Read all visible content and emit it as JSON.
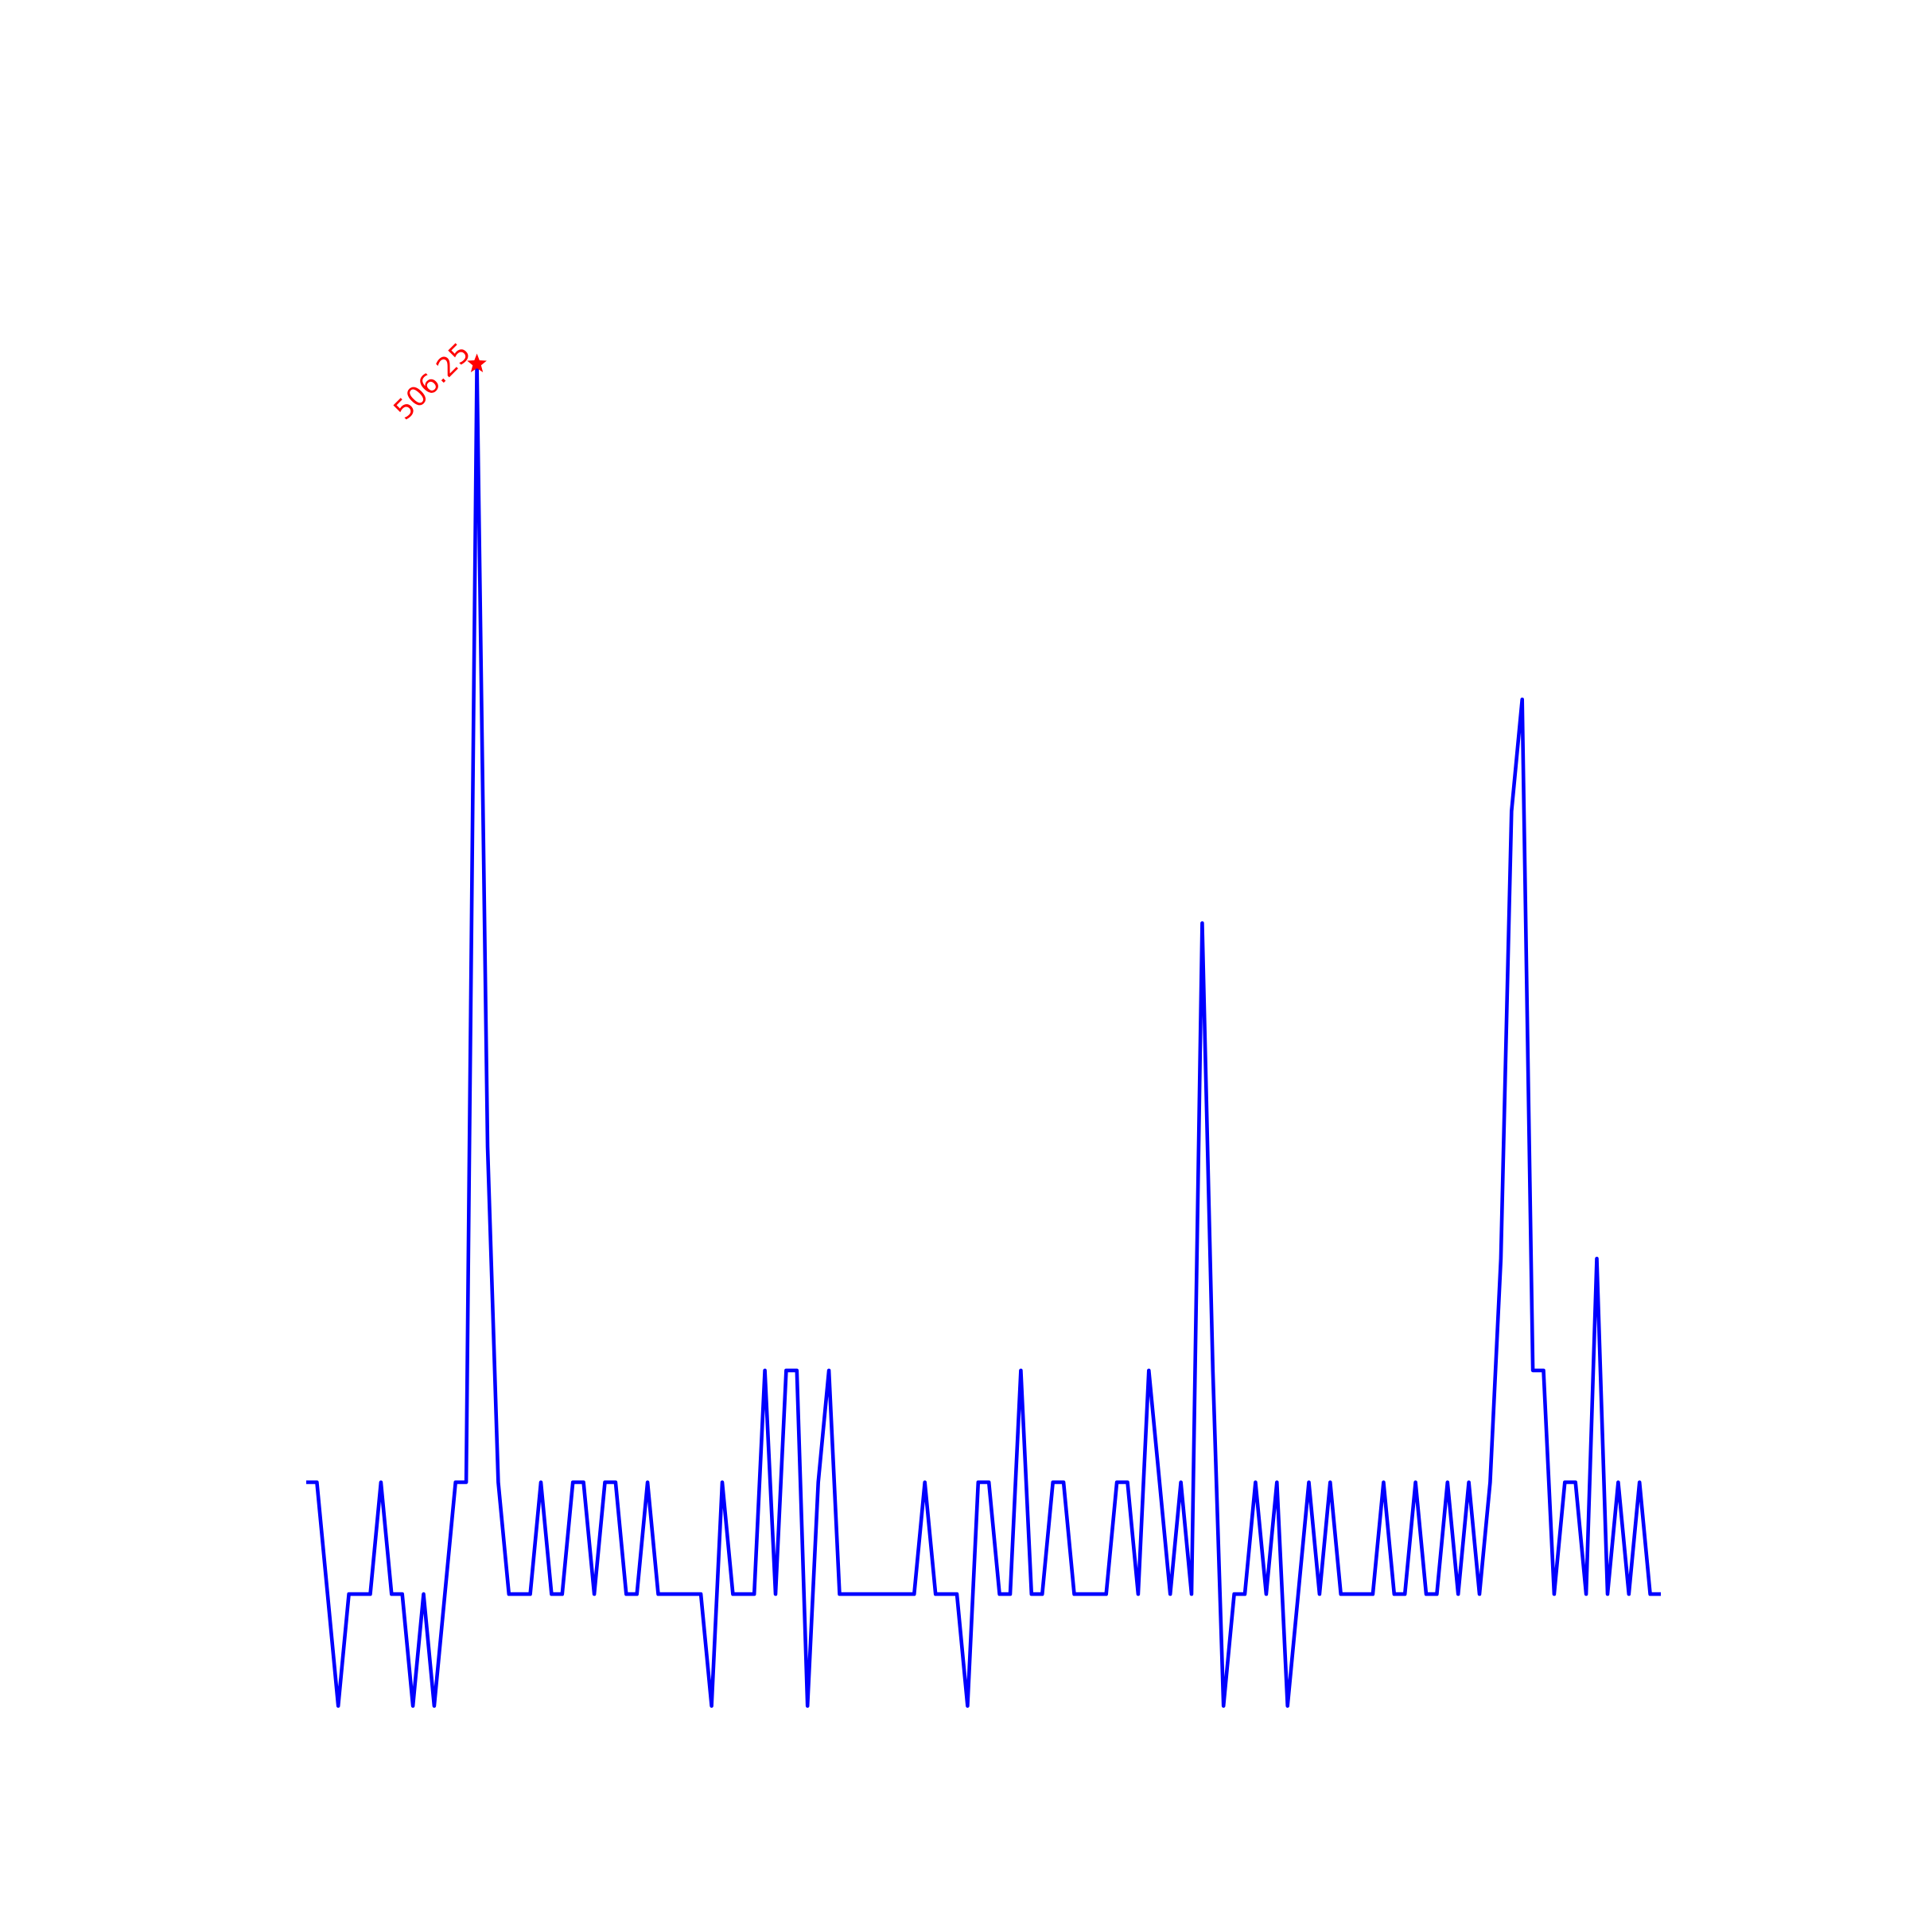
{
  "chart_data": {
    "type": "line",
    "values": [
      84.375,
      84.375,
      42.1875,
      0,
      42.1875,
      42.1875,
      42.1875,
      84.375,
      42.1875,
      42.1875,
      0,
      42.1875,
      0,
      42.1875,
      84.375,
      84.375,
      506.25,
      210.9375,
      84.375,
      42.1875,
      42.1875,
      42.1875,
      84.375,
      42.1875,
      42.1875,
      84.375,
      84.375,
      42.1875,
      84.375,
      84.375,
      42.1875,
      42.1875,
      84.375,
      42.1875,
      42.1875,
      42.1875,
      42.1875,
      42.1875,
      0,
      84.375,
      42.1875,
      42.1875,
      42.1875,
      126.5625,
      42.1875,
      126.5625,
      126.5625,
      0,
      84.375,
      126.5625,
      42.1875,
      42.1875,
      42.1875,
      42.1875,
      42.1875,
      42.1875,
      42.1875,
      42.1875,
      84.375,
      42.1875,
      42.1875,
      42.1875,
      0,
      84.375,
      84.375,
      42.1875,
      42.1875,
      126.5625,
      42.1875,
      42.1875,
      84.375,
      84.375,
      42.1875,
      42.1875,
      42.1875,
      42.1875,
      84.375,
      84.375,
      42.1875,
      126.5625,
      84.375,
      42.1875,
      84.375,
      42.1875,
      295.3125,
      126.5625,
      0,
      42.1875,
      42.1875,
      84.375,
      42.1875,
      84.375,
      0,
      42.1875,
      84.375,
      42.1875,
      84.375,
      42.1875,
      42.1875,
      42.1875,
      42.1875,
      84.375,
      42.1875,
      42.1875,
      84.375,
      42.1875,
      42.1875,
      84.375,
      42.1875,
      84.375,
      42.1875,
      84.375,
      168.75,
      337.5,
      379.6875,
      126.5625,
      126.5625,
      42.1875,
      84.375,
      84.375,
      42.1875,
      168.75,
      42.1875,
      84.375,
      42.1875,
      84.375,
      42.1875,
      42.1875
    ],
    "color": "#0000ff",
    "ylim": [
      -25.3,
      531.6
    ],
    "annotation": {
      "text": "506.25",
      "color": "#ff0000"
    }
  }
}
